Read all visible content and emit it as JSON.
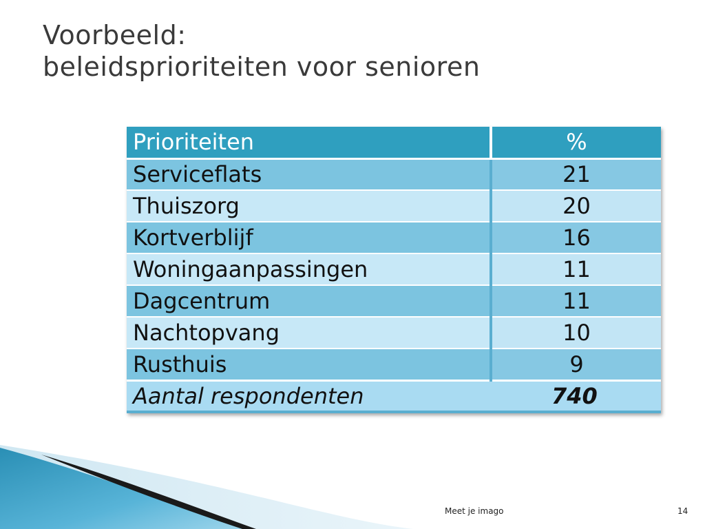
{
  "slide": {
    "title_line1": "Voorbeeld:",
    "title_line2": "beleidsprioriteiten voor senioren",
    "footer_center": "Meet je imago",
    "page_number": "14"
  },
  "table": {
    "header": [
      "Prioriteiten",
      "%"
    ],
    "rows": [
      {
        "label": "Serviceflats",
        "value": "21"
      },
      {
        "label": "Thuiszorg",
        "value": "20"
      },
      {
        "label": "Kortverblijf",
        "value": "16"
      },
      {
        "label": "Woningaanpassingen",
        "value": "11"
      },
      {
        "label": "Dagcentrum",
        "value": "11"
      },
      {
        "label": "Nachtopvang",
        "value": "10"
      },
      {
        "label": "Rusthuis",
        "value": "9"
      }
    ],
    "total": {
      "label": "Aantal respondenten",
      "value": "740"
    }
  },
  "colors": {
    "header_bg": "#2f9fbf",
    "row_dark": "#7cc4e0",
    "row_light": "#c7e8f7",
    "title_text": "#3a3a3a"
  }
}
